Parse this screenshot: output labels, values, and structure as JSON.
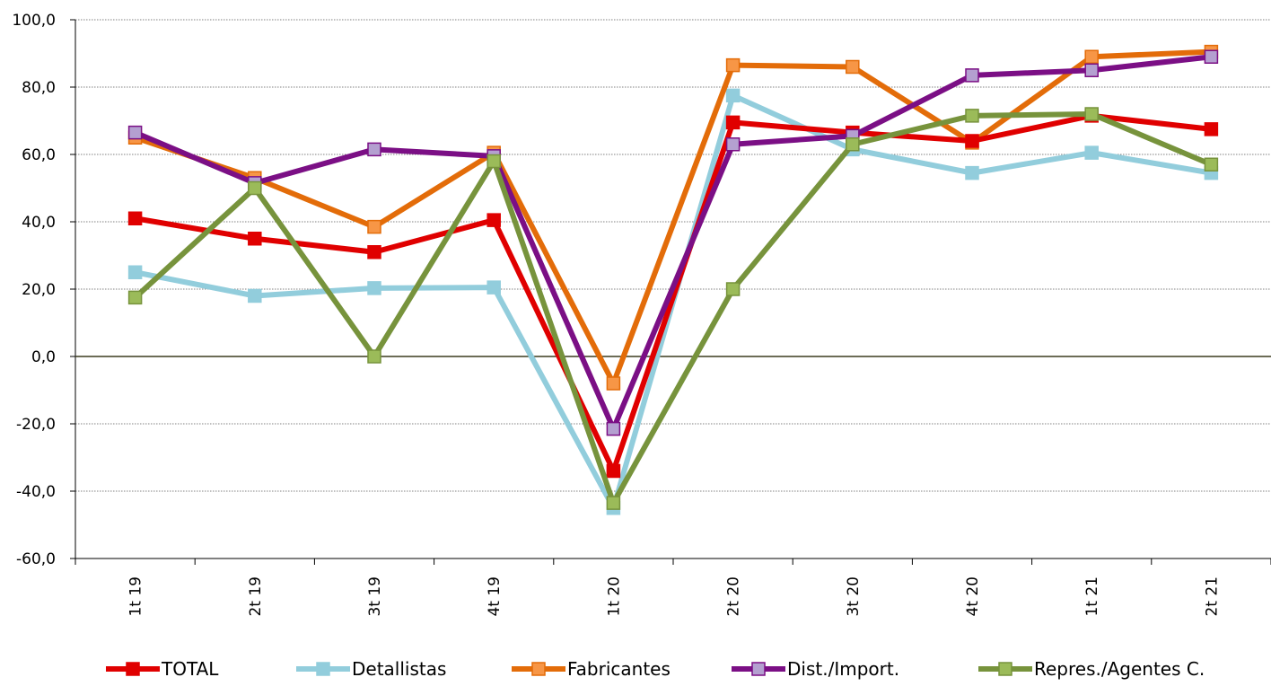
{
  "chart_data": {
    "type": "line",
    "title": "",
    "xlabel": "",
    "ylabel": "",
    "ylim": [
      -60,
      100
    ],
    "ytick_step": 20,
    "ytick_labels": [
      "100,0",
      "80,0",
      "60,0",
      "40,0",
      "20,0",
      "0,0",
      "-20,0",
      "-40,0",
      "-60,0"
    ],
    "categories": [
      "1t 19",
      "2t 19",
      "3t 19",
      "4t 19",
      "1t 20",
      "2t 20",
      "3t 20",
      "4t 20",
      "1t 21",
      "2t 21"
    ],
    "grid": true,
    "legend_position": "bottom",
    "series": [
      {
        "name": "Detallistas",
        "line_color": "#92CDDC",
        "marker_color": "#92CDDC",
        "marker_edge": "#92CDDC",
        "values": [
          25.0,
          18.0,
          20.3,
          20.5,
          -45.0,
          77.5,
          61.5,
          54.5,
          60.5,
          54.5
        ]
      },
      {
        "name": "Fabricantes",
        "line_color": "#E36C09",
        "marker_color": "#F79646",
        "marker_edge": "#E36C09",
        "values": [
          65.0,
          53.0,
          38.5,
          60.5,
          -8.0,
          86.5,
          86.0,
          63.5,
          89.0,
          90.5
        ]
      },
      {
        "name": "TOTAL",
        "line_color": "#E00000",
        "marker_color": "#E00000",
        "marker_edge": "#E00000",
        "values": [
          41.0,
          35.0,
          31.0,
          40.5,
          -34.0,
          69.5,
          66.5,
          64.0,
          71.5,
          67.5
        ]
      },
      {
        "name": "Dist./Import.",
        "line_color": "#7B0F85",
        "marker_color": "#B4A0D0",
        "marker_edge": "#7B0F85",
        "values": [
          66.5,
          51.5,
          61.5,
          59.5,
          -21.5,
          63.0,
          65.5,
          83.5,
          85.0,
          89.0
        ]
      },
      {
        "name": "Repres./Agentes C.",
        "line_color": "#77933C",
        "marker_color": "#9BBB59",
        "marker_edge": "#77933C",
        "values": [
          17.5,
          50.0,
          0.0,
          58.0,
          -43.5,
          20.0,
          63.0,
          71.5,
          72.0,
          57.0
        ]
      }
    ],
    "legend": [
      "TOTAL",
      "Detallistas",
      "Fabricantes",
      "Dist./Import.",
      "Repres./Agentes C."
    ]
  }
}
